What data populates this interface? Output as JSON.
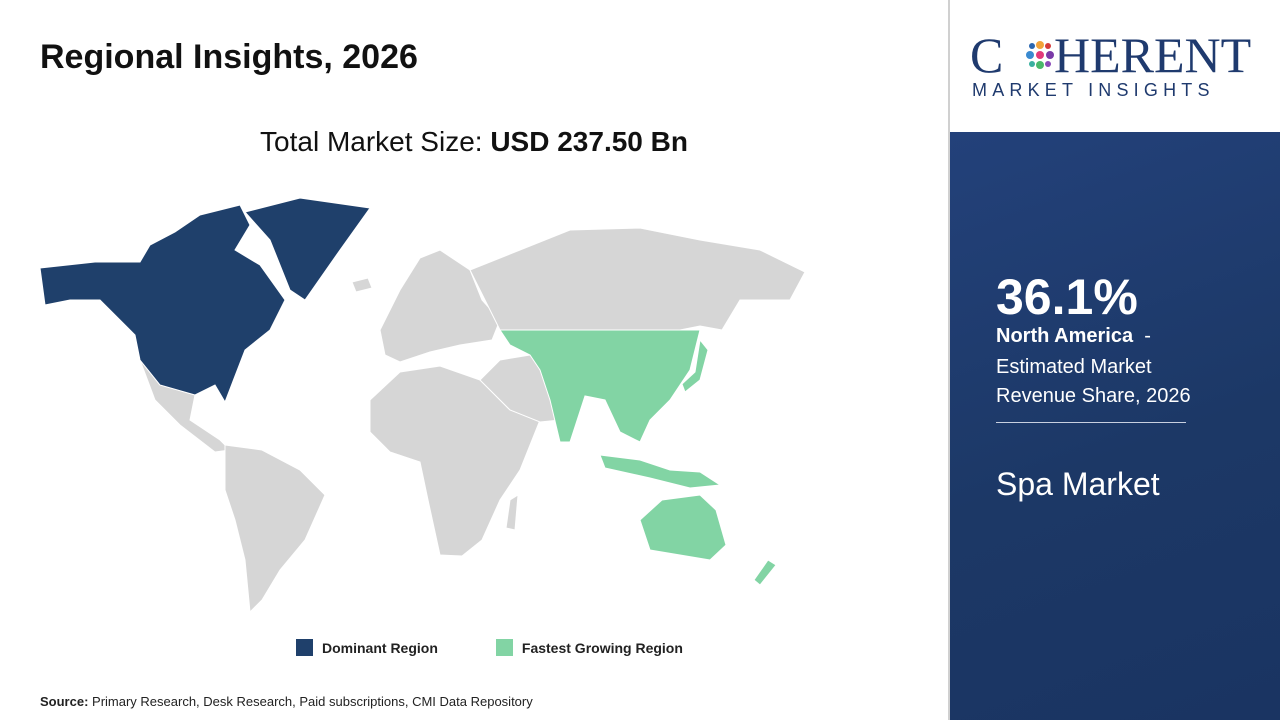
{
  "header": {
    "title": "Regional Insights, 2026"
  },
  "market_size": {
    "label": "Total Market Size:",
    "value": "USD 237.50  Bn"
  },
  "logo": {
    "parts": [
      "C",
      "HERENT"
    ],
    "tagline": "MARKET INSIGHTS"
  },
  "legend": {
    "items": [
      {
        "label": "Dominant Region",
        "color": "#1f406b"
      },
      {
        "label": "Fastest Growing Region",
        "color": "#82d4a4"
      }
    ]
  },
  "sidebar": {
    "share": "36.1%",
    "region": "North America",
    "separator": "-",
    "description": "Estimated Market Revenue Share, 2026",
    "market": "Spa Market"
  },
  "source": {
    "label": "Source:",
    "text": "Primary Research, Desk Research, Paid subscriptions, CMI Data Repository"
  }
}
